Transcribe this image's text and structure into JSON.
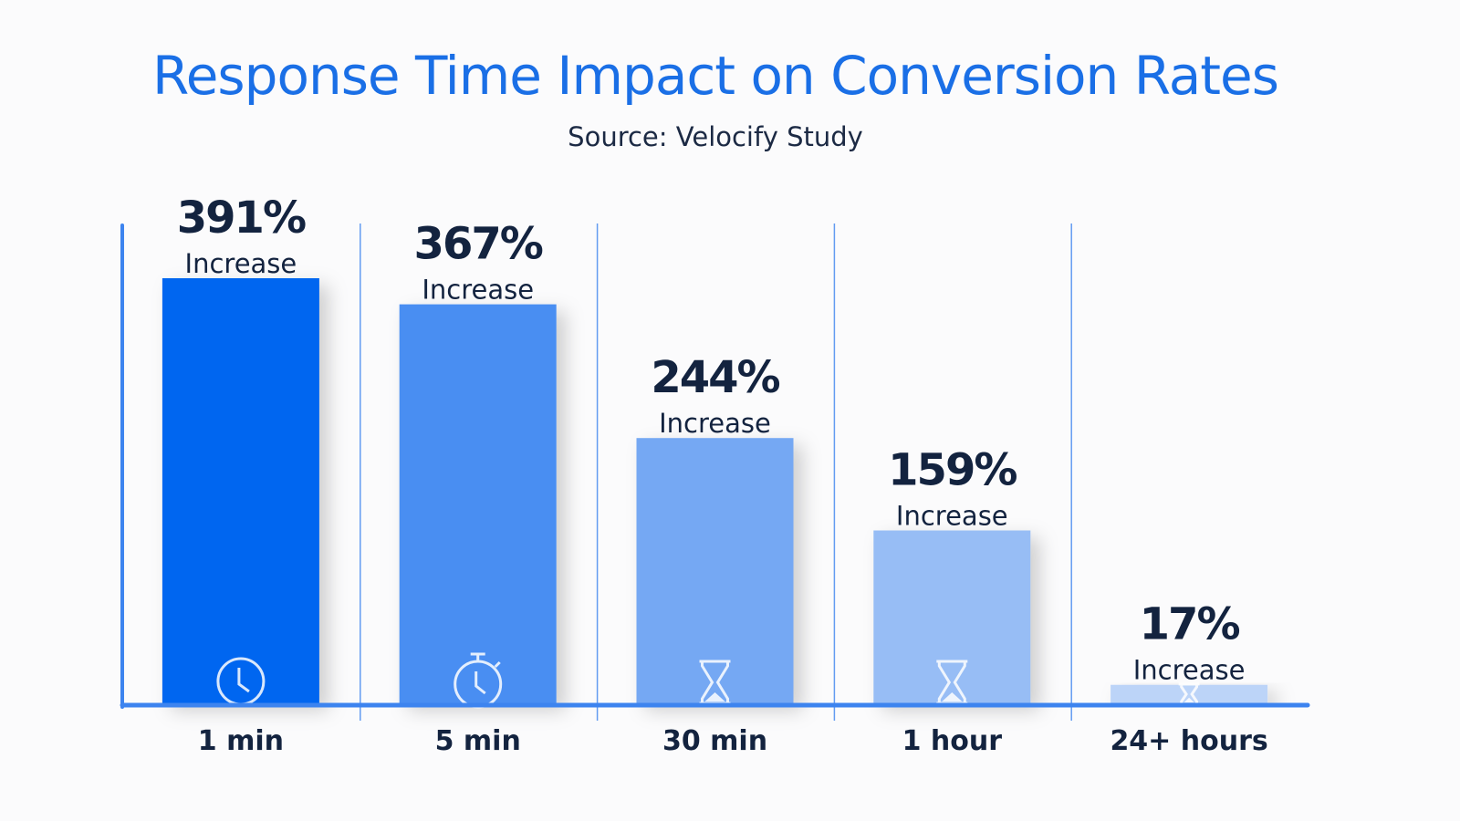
{
  "chart_data": {
    "type": "bar",
    "title": "Response Time Impact on Conversion Rates",
    "subtitle": "Source: Velocify Study",
    "categories": [
      "1 min",
      "5 min",
      "30 min",
      "1 hour",
      "24+ hours"
    ],
    "values": [
      391,
      367,
      244,
      159,
      17
    ],
    "value_labels": [
      "391%",
      "367%",
      "244%",
      "159%",
      "17%"
    ],
    "value_sublabel": "Increase",
    "icons": [
      "clock-icon",
      "stopwatch-icon",
      "hourglass-icon",
      "hourglass-icon",
      "hourglass-icon"
    ],
    "colors": [
      "#0066f0",
      "#4a8ef2",
      "#74a8f3",
      "#97bdf5",
      "#bcd4f8"
    ],
    "axis_color": "#3d84ef",
    "ylim": [
      0,
      391
    ],
    "grid": false
  }
}
